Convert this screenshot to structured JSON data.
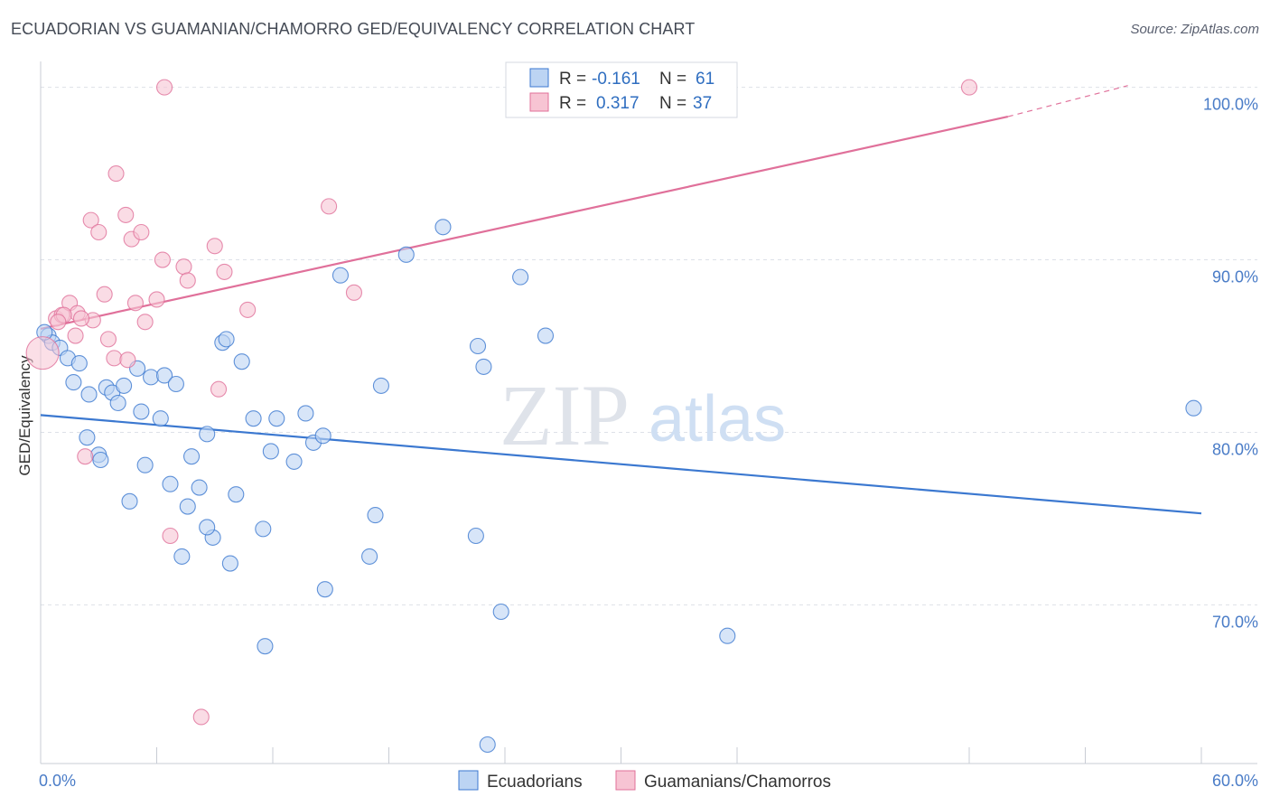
{
  "title": "ECUADORIAN VS GUAMANIAN/CHAMORRO GED/EQUIVALENCY CORRELATION CHART",
  "source": "Source: ZipAtlas.com",
  "watermark": {
    "zip": "ZIP",
    "atlas": "atlas"
  },
  "colors": {
    "blue": "#3b78d0",
    "blue_fill": "#bcd4f3",
    "pink": "#e0709a",
    "pink_fill": "#f7c4d3",
    "axis_label": "#4a7cc7",
    "grid": "#dde1e8"
  },
  "legend": {
    "rows": [
      {
        "r_label": "R =",
        "r_value": "-0.161",
        "n_label": "N =",
        "n_value": "61",
        "color": "blue"
      },
      {
        "r_label": "R =",
        "r_value": "0.317",
        "n_label": "N =",
        "n_value": "37",
        "color": "pink"
      }
    ]
  },
  "bottom_legend": [
    {
      "label": "Ecuadorians",
      "color": "blue"
    },
    {
      "label": "Guamanians/Chamorros",
      "color": "pink"
    }
  ],
  "chart_data": {
    "type": "scatter",
    "title": "ECUADORIAN VS GUAMANIAN/CHAMORRO GED/EQUIVALENCY CORRELATION CHART",
    "xlabel": "",
    "ylabel": "GED/Equivalency",
    "xlim": [
      0,
      60
    ],
    "ylim": [
      60.8,
      101.5
    ],
    "x_tick_labels": [
      {
        "value": 0,
        "label": "0.0%"
      },
      {
        "value": 60,
        "label": "60.0%"
      }
    ],
    "y_tick_labels": [
      {
        "value": 70,
        "label": "70.0%"
      },
      {
        "value": 80,
        "label": "80.0%"
      },
      {
        "value": 90,
        "label": "90.0%"
      },
      {
        "value": 100,
        "label": "100.0%"
      }
    ],
    "x_minor_ticks": [
      6,
      12,
      18,
      24,
      30,
      36,
      48,
      54
    ],
    "series": [
      {
        "name": "Ecuadorians",
        "color": "blue",
        "r": -0.161,
        "n": 61,
        "trend": {
          "x0": 0,
          "y0": 81.0,
          "x1": 60,
          "y1": 75.3,
          "dashed_to": null
        },
        "points": [
          [
            0.4,
            85.6
          ],
          [
            0.6,
            85.2
          ],
          [
            1.0,
            84.9
          ],
          [
            1.4,
            84.3
          ],
          [
            2.0,
            84.0
          ],
          [
            1.7,
            82.9
          ],
          [
            2.5,
            82.2
          ],
          [
            3.4,
            82.6
          ],
          [
            3.7,
            82.3
          ],
          [
            4.0,
            81.7
          ],
          [
            4.3,
            82.7
          ],
          [
            5.0,
            83.7
          ],
          [
            5.7,
            83.2
          ],
          [
            6.4,
            83.3
          ],
          [
            7.0,
            82.8
          ],
          [
            5.2,
            81.2
          ],
          [
            6.2,
            80.8
          ],
          [
            2.4,
            79.7
          ],
          [
            3.0,
            78.7
          ],
          [
            3.1,
            78.4
          ],
          [
            5.4,
            78.1
          ],
          [
            7.8,
            78.6
          ],
          [
            4.6,
            76.0
          ],
          [
            6.7,
            77.0
          ],
          [
            7.6,
            75.7
          ],
          [
            8.2,
            76.8
          ],
          [
            8.6,
            79.9
          ],
          [
            9.4,
            85.2
          ],
          [
            9.6,
            85.4
          ],
          [
            10.4,
            84.1
          ],
          [
            10.1,
            76.4
          ],
          [
            11.0,
            80.8
          ],
          [
            12.2,
            80.8
          ],
          [
            11.9,
            78.9
          ],
          [
            13.1,
            78.3
          ],
          [
            13.7,
            81.1
          ],
          [
            14.1,
            79.4
          ],
          [
            14.6,
            79.8
          ],
          [
            15.5,
            89.1
          ],
          [
            17.6,
            82.7
          ],
          [
            18.9,
            90.3
          ],
          [
            20.8,
            91.9
          ],
          [
            22.6,
            85.0
          ],
          [
            22.9,
            83.8
          ],
          [
            22.5,
            74.0
          ],
          [
            23.8,
            69.6
          ],
          [
            24.8,
            89.0
          ],
          [
            26.1,
            85.6
          ],
          [
            17.3,
            75.2
          ],
          [
            17.0,
            72.8
          ],
          [
            14.7,
            70.9
          ],
          [
            11.6,
            67.6
          ],
          [
            11.5,
            74.4
          ],
          [
            9.8,
            72.4
          ],
          [
            8.9,
            73.9
          ],
          [
            8.6,
            74.5
          ],
          [
            7.3,
            72.8
          ],
          [
            23.1,
            61.9
          ],
          [
            35.5,
            68.2
          ],
          [
            59.6,
            81.4
          ],
          [
            0.2,
            85.8
          ]
        ]
      },
      {
        "name": "Guamanians/Chamorros",
        "color": "pink",
        "r": 0.317,
        "n": 37,
        "trend": {
          "x0": 0,
          "y0": 86.0,
          "x1": 50.0,
          "y1": 98.3,
          "dashed_to": {
            "x": 56.2,
            "y": 100.1
          }
        },
        "points": [
          [
            0.1,
            84.6
          ],
          [
            0.8,
            86.6
          ],
          [
            1.1,
            86.8
          ],
          [
            1.5,
            87.5
          ],
          [
            1.9,
            86.9
          ],
          [
            1.8,
            85.6
          ],
          [
            2.7,
            86.5
          ],
          [
            2.3,
            78.6
          ],
          [
            2.6,
            92.3
          ],
          [
            3.0,
            91.6
          ],
          [
            3.3,
            88.0
          ],
          [
            3.5,
            85.4
          ],
          [
            3.8,
            84.3
          ],
          [
            3.9,
            95.0
          ],
          [
            4.5,
            84.2
          ],
          [
            4.4,
            92.6
          ],
          [
            4.7,
            91.2
          ],
          [
            4.9,
            87.5
          ],
          [
            5.2,
            91.6
          ],
          [
            5.4,
            86.4
          ],
          [
            6.0,
            87.7
          ],
          [
            6.3,
            90.0
          ],
          [
            6.4,
            100.0
          ],
          [
            6.7,
            74.0
          ],
          [
            7.4,
            89.6
          ],
          [
            7.6,
            88.8
          ],
          [
            9.0,
            90.8
          ],
          [
            9.2,
            82.5
          ],
          [
            9.5,
            89.3
          ],
          [
            10.7,
            87.1
          ],
          [
            8.3,
            63.5
          ],
          [
            14.9,
            93.1
          ],
          [
            16.2,
            88.1
          ],
          [
            48.0,
            100.0
          ],
          [
            1.2,
            86.8
          ],
          [
            0.9,
            86.4
          ],
          [
            2.1,
            86.6
          ]
        ]
      }
    ]
  }
}
